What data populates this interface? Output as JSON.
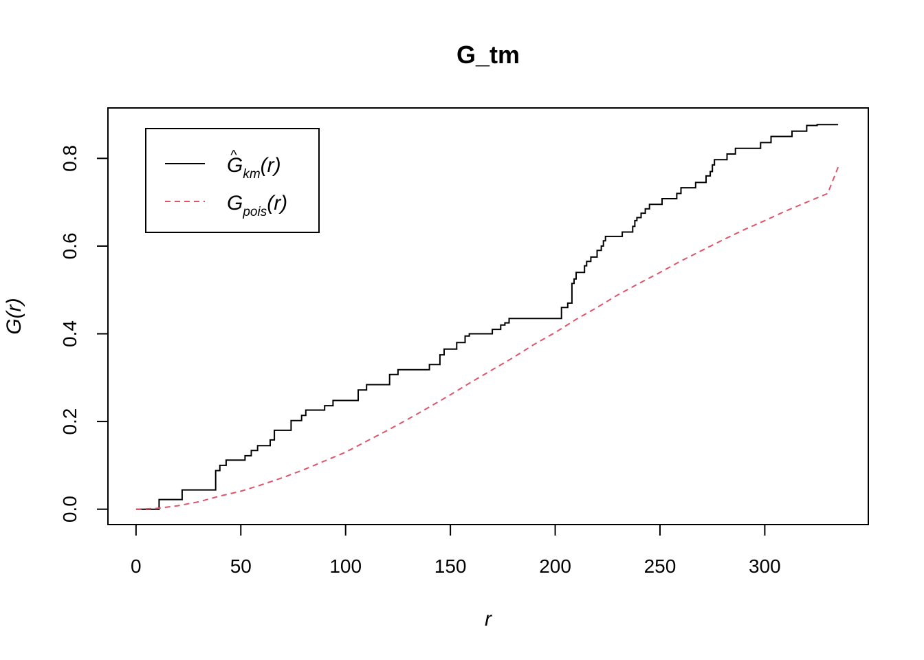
{
  "chart_data": {
    "type": "line",
    "title": "G_tm",
    "xlabel": "r",
    "ylabel": "G(r)",
    "xlim": [
      -13.4,
      349.4
    ],
    "ylim": [
      -0.035,
      0.915
    ],
    "x_ticks": [
      0,
      50,
      100,
      150,
      200,
      250,
      300
    ],
    "x_tick_labels": [
      "0",
      "50",
      "100",
      "150",
      "200",
      "250",
      "300"
    ],
    "y_ticks": [
      0.0,
      0.2,
      0.4,
      0.6,
      0.8
    ],
    "y_tick_labels": [
      "0.0",
      "0.2",
      "0.4",
      "0.6",
      "0.8"
    ],
    "grid": false,
    "legend_position": "top-left",
    "legend": [
      {
        "base": "G",
        "hat": "^",
        "sub": "km",
        "arg": "r"
      },
      {
        "base": "G",
        "hat": "",
        "sub": "pois",
        "arg": "r"
      }
    ],
    "series": [
      {
        "name": "G_km(r)",
        "color": "#000000",
        "dash": "solid",
        "step": true,
        "x": [
          0,
          11,
          22,
          38,
          40,
          43,
          52,
          55,
          56,
          58,
          61,
          64,
          66,
          74,
          76,
          79,
          81,
          90,
          92,
          94,
          96,
          106,
          108,
          110,
          112,
          121,
          123,
          125,
          127,
          140,
          142,
          145,
          147,
          151,
          153,
          157,
          159,
          161,
          170,
          172,
          174,
          176,
          178,
          180,
          181,
          203,
          206,
          208,
          209,
          210,
          214,
          215,
          217,
          219,
          220,
          222,
          223,
          224,
          232,
          233,
          237,
          238,
          239,
          241,
          243,
          245,
          247,
          248,
          251,
          253,
          258,
          260,
          262,
          267,
          268,
          272,
          274,
          275,
          276,
          282,
          286,
          298,
          300,
          303,
          305,
          313,
          315,
          320,
          325,
          335
        ],
        "y": [
          0,
          0.022,
          0.044,
          0.088,
          0.1,
          0.112,
          0.122,
          0.134,
          0.134,
          0.145,
          0.145,
          0.158,
          0.18,
          0.202,
          0.202,
          0.214,
          0.226,
          0.236,
          0.236,
          0.248,
          0.248,
          0.272,
          0.272,
          0.284,
          0.284,
          0.307,
          0.307,
          0.318,
          0.318,
          0.33,
          0.33,
          0.352,
          0.365,
          0.365,
          0.38,
          0.395,
          0.4,
          0.4,
          0.41,
          0.41,
          0.42,
          0.425,
          0.435,
          0.435,
          0.435,
          0.46,
          0.47,
          0.515,
          0.525,
          0.54,
          0.555,
          0.565,
          0.575,
          0.575,
          0.59,
          0.6,
          0.612,
          0.622,
          0.632,
          0.632,
          0.645,
          0.658,
          0.665,
          0.675,
          0.685,
          0.695,
          0.695,
          0.695,
          0.708,
          0.708,
          0.72,
          0.733,
          0.733,
          0.745,
          0.745,
          0.76,
          0.77,
          0.785,
          0.797,
          0.81,
          0.823,
          0.836,
          0.836,
          0.85,
          0.85,
          0.862,
          0.862,
          0.875,
          0.877,
          0.877
        ]
      },
      {
        "name": "G_pois(r)",
        "color": "#DF536B",
        "dash": "dashed",
        "step": false,
        "x": [
          0,
          10,
          20,
          30,
          40,
          50,
          60,
          70,
          80,
          90,
          100,
          110,
          120,
          130,
          140,
          150,
          160,
          170,
          180,
          190,
          200,
          210,
          220,
          230,
          240,
          250,
          260,
          270,
          280,
          290,
          300,
          310,
          320,
          330,
          335
        ],
        "y": [
          0,
          0.002,
          0.008,
          0.017,
          0.03,
          0.041,
          0.056,
          0.072,
          0.09,
          0.11,
          0.13,
          0.155,
          0.18,
          0.206,
          0.233,
          0.261,
          0.29,
          0.318,
          0.346,
          0.376,
          0.403,
          0.433,
          0.46,
          0.489,
          0.515,
          0.54,
          0.566,
          0.59,
          0.614,
          0.637,
          0.658,
          0.68,
          0.7,
          0.72,
          0.78
        ]
      }
    ]
  }
}
